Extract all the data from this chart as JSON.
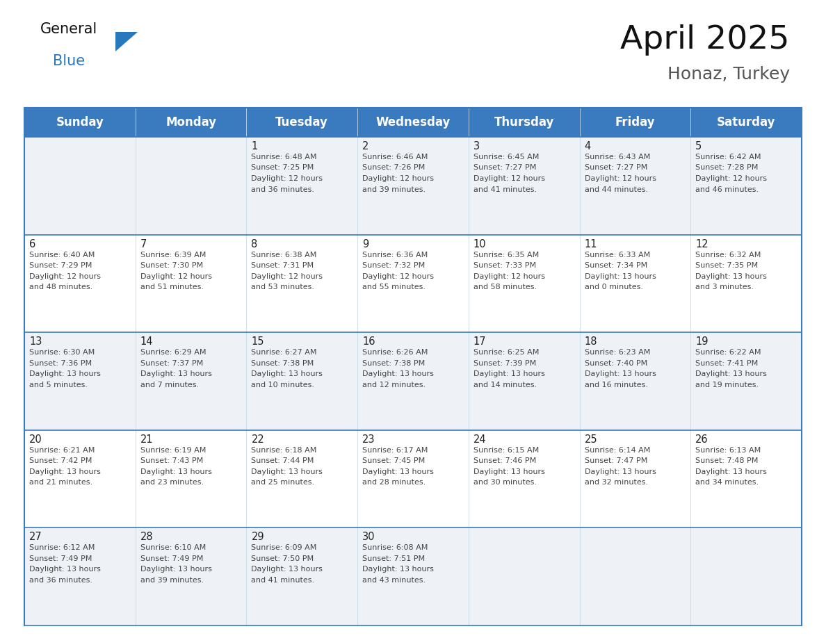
{
  "title": "April 2025",
  "subtitle": "Honaz, Turkey",
  "days_of_week": [
    "Sunday",
    "Monday",
    "Tuesday",
    "Wednesday",
    "Thursday",
    "Friday",
    "Saturday"
  ],
  "header_bg": "#3a7abf",
  "header_text": "#ffffff",
  "row_bg_odd": "#eef2f7",
  "row_bg_even": "#ffffff",
  "border_color": "#3a7abf",
  "text_color": "#444444",
  "day_num_color": "#222222",
  "calendar_data": [
    [
      {
        "day": "",
        "sunrise": "",
        "sunset": "",
        "daylight": ""
      },
      {
        "day": "",
        "sunrise": "",
        "sunset": "",
        "daylight": ""
      },
      {
        "day": "1",
        "sunrise": "6:48 AM",
        "sunset": "7:25 PM",
        "daylight_h": "12 hours",
        "daylight_m": "and 36 minutes."
      },
      {
        "day": "2",
        "sunrise": "6:46 AM",
        "sunset": "7:26 PM",
        "daylight_h": "12 hours",
        "daylight_m": "and 39 minutes."
      },
      {
        "day": "3",
        "sunrise": "6:45 AM",
        "sunset": "7:27 PM",
        "daylight_h": "12 hours",
        "daylight_m": "and 41 minutes."
      },
      {
        "day": "4",
        "sunrise": "6:43 AM",
        "sunset": "7:27 PM",
        "daylight_h": "12 hours",
        "daylight_m": "and 44 minutes."
      },
      {
        "day": "5",
        "sunrise": "6:42 AM",
        "sunset": "7:28 PM",
        "daylight_h": "12 hours",
        "daylight_m": "and 46 minutes."
      }
    ],
    [
      {
        "day": "6",
        "sunrise": "6:40 AM",
        "sunset": "7:29 PM",
        "daylight_h": "12 hours",
        "daylight_m": "and 48 minutes."
      },
      {
        "day": "7",
        "sunrise": "6:39 AM",
        "sunset": "7:30 PM",
        "daylight_h": "12 hours",
        "daylight_m": "and 51 minutes."
      },
      {
        "day": "8",
        "sunrise": "6:38 AM",
        "sunset": "7:31 PM",
        "daylight_h": "12 hours",
        "daylight_m": "and 53 minutes."
      },
      {
        "day": "9",
        "sunrise": "6:36 AM",
        "sunset": "7:32 PM",
        "daylight_h": "12 hours",
        "daylight_m": "and 55 minutes."
      },
      {
        "day": "10",
        "sunrise": "6:35 AM",
        "sunset": "7:33 PM",
        "daylight_h": "12 hours",
        "daylight_m": "and 58 minutes."
      },
      {
        "day": "11",
        "sunrise": "6:33 AM",
        "sunset": "7:34 PM",
        "daylight_h": "13 hours",
        "daylight_m": "and 0 minutes."
      },
      {
        "day": "12",
        "sunrise": "6:32 AM",
        "sunset": "7:35 PM",
        "daylight_h": "13 hours",
        "daylight_m": "and 3 minutes."
      }
    ],
    [
      {
        "day": "13",
        "sunrise": "6:30 AM",
        "sunset": "7:36 PM",
        "daylight_h": "13 hours",
        "daylight_m": "and 5 minutes."
      },
      {
        "day": "14",
        "sunrise": "6:29 AM",
        "sunset": "7:37 PM",
        "daylight_h": "13 hours",
        "daylight_m": "and 7 minutes."
      },
      {
        "day": "15",
        "sunrise": "6:27 AM",
        "sunset": "7:38 PM",
        "daylight_h": "13 hours",
        "daylight_m": "and 10 minutes."
      },
      {
        "day": "16",
        "sunrise": "6:26 AM",
        "sunset": "7:38 PM",
        "daylight_h": "13 hours",
        "daylight_m": "and 12 minutes."
      },
      {
        "day": "17",
        "sunrise": "6:25 AM",
        "sunset": "7:39 PM",
        "daylight_h": "13 hours",
        "daylight_m": "and 14 minutes."
      },
      {
        "day": "18",
        "sunrise": "6:23 AM",
        "sunset": "7:40 PM",
        "daylight_h": "13 hours",
        "daylight_m": "and 16 minutes."
      },
      {
        "day": "19",
        "sunrise": "6:22 AM",
        "sunset": "7:41 PM",
        "daylight_h": "13 hours",
        "daylight_m": "and 19 minutes."
      }
    ],
    [
      {
        "day": "20",
        "sunrise": "6:21 AM",
        "sunset": "7:42 PM",
        "daylight_h": "13 hours",
        "daylight_m": "and 21 minutes."
      },
      {
        "day": "21",
        "sunrise": "6:19 AM",
        "sunset": "7:43 PM",
        "daylight_h": "13 hours",
        "daylight_m": "and 23 minutes."
      },
      {
        "day": "22",
        "sunrise": "6:18 AM",
        "sunset": "7:44 PM",
        "daylight_h": "13 hours",
        "daylight_m": "and 25 minutes."
      },
      {
        "day": "23",
        "sunrise": "6:17 AM",
        "sunset": "7:45 PM",
        "daylight_h": "13 hours",
        "daylight_m": "and 28 minutes."
      },
      {
        "day": "24",
        "sunrise": "6:15 AM",
        "sunset": "7:46 PM",
        "daylight_h": "13 hours",
        "daylight_m": "and 30 minutes."
      },
      {
        "day": "25",
        "sunrise": "6:14 AM",
        "sunset": "7:47 PM",
        "daylight_h": "13 hours",
        "daylight_m": "and 32 minutes."
      },
      {
        "day": "26",
        "sunrise": "6:13 AM",
        "sunset": "7:48 PM",
        "daylight_h": "13 hours",
        "daylight_m": "and 34 minutes."
      }
    ],
    [
      {
        "day": "27",
        "sunrise": "6:12 AM",
        "sunset": "7:49 PM",
        "daylight_h": "13 hours",
        "daylight_m": "and 36 minutes."
      },
      {
        "day": "28",
        "sunrise": "6:10 AM",
        "sunset": "7:49 PM",
        "daylight_h": "13 hours",
        "daylight_m": "and 39 minutes."
      },
      {
        "day": "29",
        "sunrise": "6:09 AM",
        "sunset": "7:50 PM",
        "daylight_h": "13 hours",
        "daylight_m": "and 41 minutes."
      },
      {
        "day": "30",
        "sunrise": "6:08 AM",
        "sunset": "7:51 PM",
        "daylight_h": "13 hours",
        "daylight_m": "and 43 minutes."
      },
      {
        "day": "",
        "sunrise": "",
        "sunset": "",
        "daylight_h": "",
        "daylight_m": ""
      },
      {
        "day": "",
        "sunrise": "",
        "sunset": "",
        "daylight_h": "",
        "daylight_m": ""
      },
      {
        "day": "",
        "sunrise": "",
        "sunset": "",
        "daylight_h": "",
        "daylight_m": ""
      }
    ]
  ],
  "logo_general_color": "#111111",
  "logo_blue_color": "#2878be",
  "title_fontsize": 34,
  "subtitle_fontsize": 18,
  "header_fontsize": 12,
  "day_num_fontsize": 10.5,
  "cell_text_fontsize": 8.0
}
